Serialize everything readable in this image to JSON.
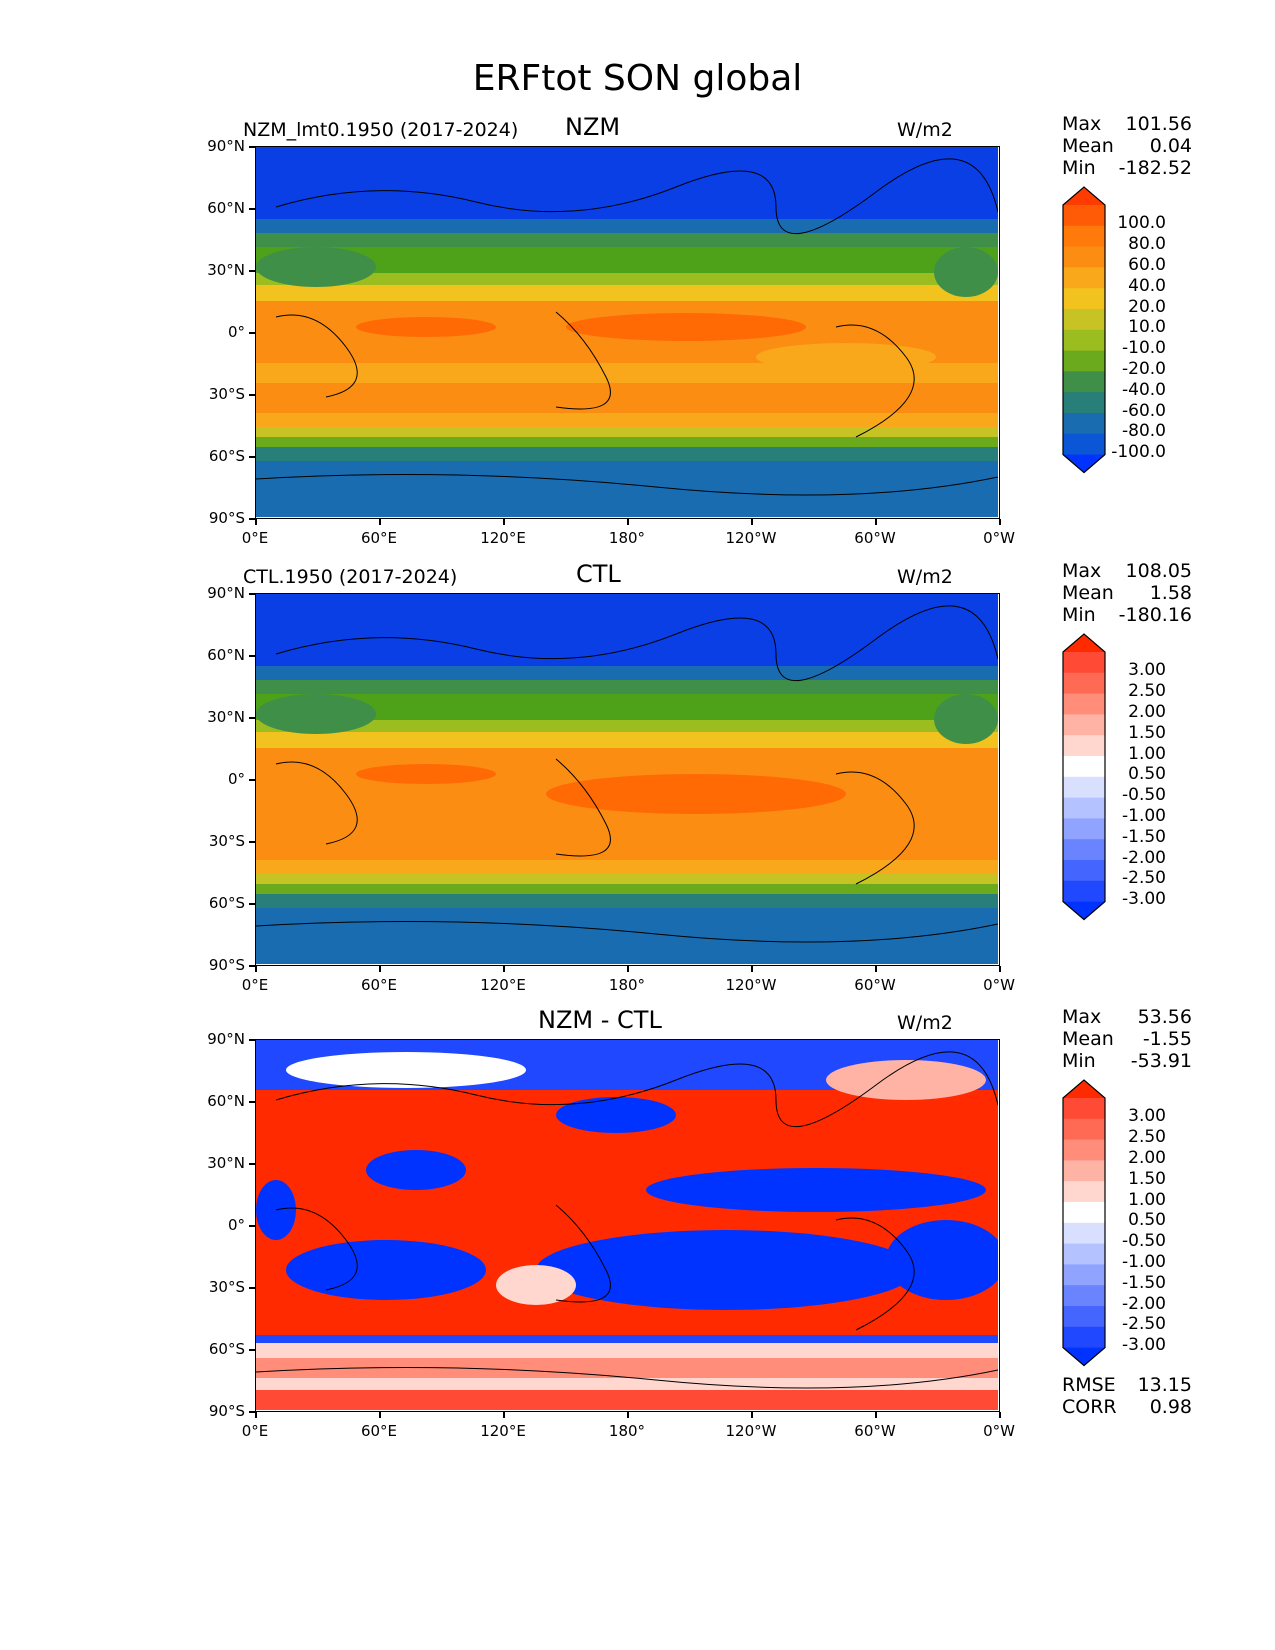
{
  "figure_title": "ERFtot SON global",
  "axes": {
    "lat_ticks": [
      "90°N",
      "60°N",
      "30°N",
      "0°",
      "30°S",
      "60°S",
      "90°S"
    ],
    "lon_ticks": [
      "0°E",
      "60°E",
      "120°E",
      "180°",
      "120°W",
      "60°W",
      "0°W"
    ]
  },
  "panels": [
    {
      "left_label": "NZM_lmt0.1950 (2017-2024)",
      "center_title": "NZM",
      "units": "W/m2",
      "stats": {
        "max_label": "Max",
        "max": "101.56",
        "mean_label": "Mean",
        "mean": "0.04",
        "min_label": "Min",
        "min": "-182.52"
      }
    },
    {
      "left_label": "CTL.1950 (2017-2024)",
      "center_title": "CTL",
      "units": "W/m2",
      "stats": {
        "max_label": "Max",
        "max": "108.05",
        "mean_label": "Mean",
        "mean": "1.58",
        "min_label": "Min",
        "min": "-180.16"
      }
    },
    {
      "left_label": "",
      "center_title": "NZM - CTL",
      "units": "W/m2",
      "stats": {
        "max_label": "Max",
        "max": "53.56",
        "mean_label": "Mean",
        "mean": "-1.55",
        "min_label": "Min",
        "min": "-53.91"
      },
      "metrics": {
        "rmse_label": "RMSE",
        "rmse": "13.15",
        "corr_label": "CORR",
        "corr": "0.98"
      }
    }
  ],
  "colorbars": {
    "field": {
      "labels": [
        "100.0",
        "80.0",
        "60.0",
        "40.0",
        "20.0",
        "10.0",
        "-10.0",
        "-20.0",
        "-40.0",
        "-60.0",
        "-80.0",
        "-100.0"
      ],
      "colors": [
        "#ff3c00",
        "#ff5a05",
        "#ff7a0a",
        "#fb8e12",
        "#f9a81b",
        "#f2c21e",
        "#c8c325",
        "#9cbd1f",
        "#6aaa1c",
        "#3f8f48",
        "#287e78",
        "#1a6cb0",
        "#0a56d6",
        "#0033ff"
      ]
    },
    "diff": {
      "labels": [
        "3.00",
        "2.50",
        "2.00",
        "1.50",
        "1.00",
        "0.50",
        "-0.50",
        "-1.00",
        "-1.50",
        "-2.00",
        "-2.50",
        "-3.00"
      ],
      "colors": [
        "#ff2a00",
        "#ff4a35",
        "#ff6a55",
        "#ff8d7a",
        "#ffb3a5",
        "#ffd7cf",
        "#ffffff",
        "#d9e0ff",
        "#b4c2ff",
        "#8fa3ff",
        "#6a84ff",
        "#4565ff",
        "#2048ff",
        "#0033ff"
      ]
    }
  }
}
